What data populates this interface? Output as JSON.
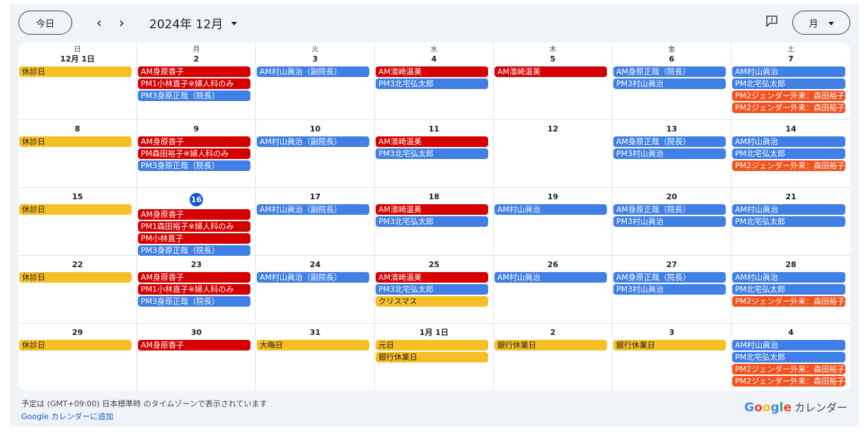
{
  "toolbar": {
    "today_label": "今日",
    "prev_icon": "‹",
    "next_icon": "›",
    "month_title": "2024年 12月",
    "view_label": "月"
  },
  "weekdays": [
    "日",
    "月",
    "火",
    "水",
    "木",
    "金",
    "土"
  ],
  "weeks": [
    [
      {
        "label": "12月 1日",
        "events": [
          {
            "text": "休診日",
            "color": "yellow"
          }
        ]
      },
      {
        "label": "2",
        "events": [
          {
            "text": "AM身原香子",
            "color": "red"
          },
          {
            "text": "PM1小林直子※婦人科のみ",
            "color": "red"
          },
          {
            "text": "PM3身原正哉（院長）",
            "color": "blue"
          }
        ]
      },
      {
        "label": "3",
        "events": [
          {
            "text": "AM村山眞治（副院長）",
            "color": "blue"
          }
        ]
      },
      {
        "label": "4",
        "events": [
          {
            "text": "AM濱崎温美",
            "color": "red"
          },
          {
            "text": "PM3北宅弘太郎",
            "color": "blue"
          }
        ]
      },
      {
        "label": "5",
        "events": [
          {
            "text": "AM濱崎温美",
            "color": "red"
          }
        ]
      },
      {
        "label": "6",
        "events": [
          {
            "text": "AM身原正哉（院長）",
            "color": "blue"
          },
          {
            "text": "PM3村山眞治",
            "color": "blue"
          }
        ]
      },
      {
        "label": "7",
        "events": [
          {
            "text": "AM村山眞治",
            "color": "blue"
          },
          {
            "text": "PM北宅弘太郎",
            "color": "blue"
          },
          {
            "text": "PM2ジェンダー外来：森田裕子",
            "color": "orange"
          },
          {
            "text": "PM2ジェンダー外来：森田裕子",
            "color": "orange"
          }
        ]
      }
    ],
    [
      {
        "label": "8",
        "events": [
          {
            "text": "休診日",
            "color": "yellow"
          }
        ]
      },
      {
        "label": "9",
        "events": [
          {
            "text": "AM身原香子",
            "color": "red"
          },
          {
            "text": "PM森田裕子※婦人科のみ",
            "color": "red"
          },
          {
            "text": "PM3身原正哉（院長）",
            "color": "blue"
          }
        ]
      },
      {
        "label": "10",
        "events": [
          {
            "text": "AM村山眞治（副院長）",
            "color": "blue"
          }
        ]
      },
      {
        "label": "11",
        "events": [
          {
            "text": "AM濱崎温美",
            "color": "red"
          },
          {
            "text": "PM3北宅弘太郎",
            "color": "blue"
          }
        ]
      },
      {
        "label": "12",
        "events": []
      },
      {
        "label": "13",
        "events": [
          {
            "text": "AM身原正哉（院長）",
            "color": "blue"
          },
          {
            "text": "PM3村山眞治",
            "color": "blue"
          }
        ]
      },
      {
        "label": "14",
        "events": [
          {
            "text": "AM村山眞治",
            "color": "blue"
          },
          {
            "text": "PM北宅弘太郎",
            "color": "blue"
          },
          {
            "text": "PM2ジェンダー外来：森田裕子",
            "color": "orange"
          }
        ]
      }
    ],
    [
      {
        "label": "15",
        "events": [
          {
            "text": "休診日",
            "color": "yellow"
          }
        ]
      },
      {
        "label": "16",
        "today": true,
        "events": [
          {
            "text": "AM身原香子",
            "color": "red"
          },
          {
            "text": "PM1森田裕子※婦人科のみ",
            "color": "red"
          },
          {
            "text": "PM小林直子",
            "color": "red"
          },
          {
            "text": "PM3身原正哉（院長）",
            "color": "blue"
          }
        ]
      },
      {
        "label": "17",
        "events": [
          {
            "text": "AM村山眞治（副院長）",
            "color": "blue"
          }
        ]
      },
      {
        "label": "18",
        "events": [
          {
            "text": "AM濱崎温美",
            "color": "red"
          },
          {
            "text": "PM3北宅弘太郎",
            "color": "blue"
          }
        ]
      },
      {
        "label": "19",
        "events": [
          {
            "text": "AM村山眞治",
            "color": "blue"
          }
        ]
      },
      {
        "label": "20",
        "events": [
          {
            "text": "AM身原正哉（院長）",
            "color": "blue"
          },
          {
            "text": "PM3村山眞治",
            "color": "blue"
          }
        ]
      },
      {
        "label": "21",
        "events": [
          {
            "text": "AM村山眞治",
            "color": "blue"
          },
          {
            "text": "PM北宅弘太郎",
            "color": "blue"
          }
        ]
      }
    ],
    [
      {
        "label": "22",
        "events": [
          {
            "text": "休診日",
            "color": "yellow"
          }
        ]
      },
      {
        "label": "23",
        "events": [
          {
            "text": "AM身原香子",
            "color": "red"
          },
          {
            "text": "PM1小林直子※婦人科のみ",
            "color": "red"
          },
          {
            "text": "PM3身原正哉（院長）",
            "color": "blue"
          }
        ]
      },
      {
        "label": "24",
        "events": [
          {
            "text": "AM村山眞治（副院長）",
            "color": "blue"
          }
        ]
      },
      {
        "label": "25",
        "events": [
          {
            "text": "AM濱崎温美",
            "color": "red"
          },
          {
            "text": "PM3北宅弘太郎",
            "color": "blue"
          },
          {
            "text": "クリスマス",
            "color": "yellow"
          }
        ]
      },
      {
        "label": "26",
        "events": [
          {
            "text": "AM村山眞治",
            "color": "blue"
          }
        ]
      },
      {
        "label": "27",
        "events": [
          {
            "text": "AM身原正哉（院長）",
            "color": "blue"
          },
          {
            "text": "PM3村山眞治",
            "color": "blue"
          }
        ]
      },
      {
        "label": "28",
        "events": [
          {
            "text": "AM村山眞治",
            "color": "blue"
          },
          {
            "text": "PM北宅弘太郎",
            "color": "blue"
          },
          {
            "text": "PM2ジェンダー外来：森田裕子",
            "color": "orange"
          }
        ]
      }
    ],
    [
      {
        "label": "29",
        "events": [
          {
            "text": "休診日",
            "color": "yellow"
          }
        ]
      },
      {
        "label": "30",
        "events": [
          {
            "text": "AM身原香子",
            "color": "red"
          }
        ]
      },
      {
        "label": "31",
        "events": [
          {
            "text": "大晦日",
            "color": "yellow"
          }
        ]
      },
      {
        "label": "1月 1日",
        "events": [
          {
            "text": "元日",
            "color": "yellow"
          },
          {
            "text": "銀行休業日",
            "color": "yellow"
          }
        ]
      },
      {
        "label": "2",
        "events": [
          {
            "text": "銀行休業日",
            "color": "yellow"
          }
        ]
      },
      {
        "label": "3",
        "events": [
          {
            "text": "銀行休業日",
            "color": "yellow"
          }
        ]
      },
      {
        "label": "4",
        "events": [
          {
            "text": "AM村山眞治",
            "color": "blue"
          },
          {
            "text": "PM北宅弘太郎",
            "color": "blue"
          },
          {
            "text": "PM2ジェンダー外来：森田裕子",
            "color": "orange"
          },
          {
            "text": "PM2ジェンダー外来：森田裕子",
            "color": "orange"
          }
        ]
      }
    ]
  ],
  "footer": {
    "timezone_note": "予定は (GMT+09:00) 日本標準時 のタイムゾーンで表示されています",
    "add_link": "Google カレンダーに追加",
    "brand_suffix": "カレンダー"
  },
  "colors": {
    "red": "#d50000",
    "blue": "#3f7fe6",
    "yellow": "#f6bf26",
    "orange": "#f4511e",
    "today": "#0b57d0"
  },
  "icons": {
    "feedback": "feedback-icon",
    "view_caret": "chevron-down-icon"
  }
}
